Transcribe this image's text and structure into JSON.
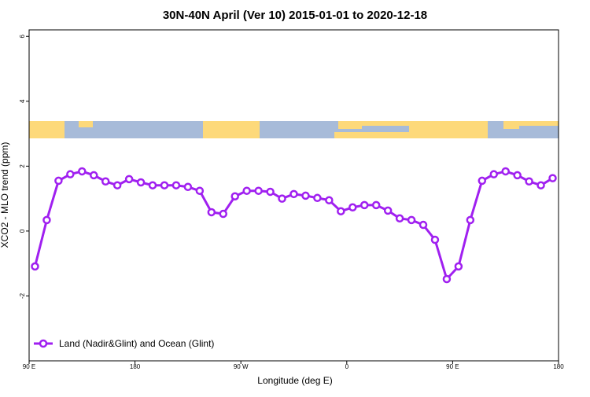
{
  "chart_data": {
    "type": "line",
    "title": "30N-40N April (Ver 10)   2015-01-01 to 2020-12-18",
    "x_label": "Longitude (deg E)",
    "y_label": "XCO2 - MLO trend (ppm)",
    "x": [
      95,
      105,
      115,
      125,
      135,
      145,
      155,
      165,
      175,
      185,
      195,
      205,
      215,
      225,
      235,
      245,
      255,
      265,
      275,
      285,
      295,
      305,
      315,
      325,
      335,
      345,
      355,
      365,
      375,
      385,
      395,
      405,
      415,
      425,
      435,
      445,
      455,
      465,
      475,
      485,
      495,
      505,
      515,
      525,
      535
    ],
    "series": [
      {
        "name": "Land (Nadir&Glint) and Ocean (Glint)",
        "color": "#a020f0",
        "values": [
          -1.09,
          0.34,
          1.55,
          1.75,
          1.84,
          1.72,
          1.53,
          1.41,
          1.6,
          1.5,
          1.41,
          1.41,
          1.41,
          1.36,
          1.24,
          0.58,
          0.53,
          1.07,
          1.24,
          1.24,
          1.21,
          1.0,
          1.14,
          1.09,
          1.02,
          0.95,
          0.61,
          0.73,
          0.8,
          0.8,
          0.63,
          0.39,
          0.34,
          0.19,
          -0.27,
          -1.48,
          -1.09,
          0.34,
          1.55,
          1.75,
          1.84,
          1.72,
          1.53,
          1.41,
          1.63
        ]
      }
    ],
    "xlim": [
      90,
      540
    ],
    "xticks": [
      {
        "value": 90,
        "label": "90 E"
      },
      180,
      {
        "value": 270,
        "label": "90 W"
      },
      {
        "value": 360,
        "label": "0"
      },
      {
        "value": 450,
        "label": "90 E"
      },
      {
        "value": 540,
        "label": "180"
      }
    ],
    "ylim": [
      -4,
      6.2
    ],
    "yticks": [
      -2,
      0,
      2,
      4,
      6
    ],
    "legend": "bottom-left"
  }
}
